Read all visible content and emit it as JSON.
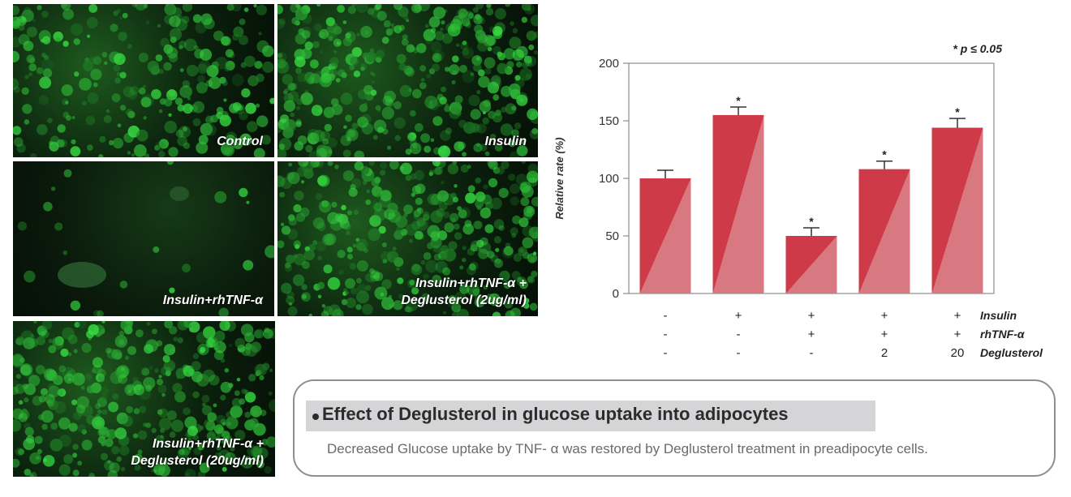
{
  "micrographs": {
    "control": "Control",
    "insulin": "Insulin",
    "insulin_tnf": "Insulin+rhTNF-α",
    "deg2": [
      "Insulin+rhTNF-α +",
      "Deglusterol (2ug/ml)"
    ],
    "deg20": [
      "Insulin+rhTNF-α +",
      "Deglusterol (20ug/ml)"
    ]
  },
  "chart_data": {
    "type": "bar",
    "title": "",
    "xlabel": "",
    "ylabel": "Relative rate (%)",
    "ylim": [
      0,
      200
    ],
    "yticks": [
      0,
      50,
      100,
      150,
      200
    ],
    "values": [
      100,
      155,
      50,
      108,
      144
    ],
    "errors": [
      7,
      7,
      7,
      7,
      8
    ],
    "significance": [
      "",
      "*",
      "*",
      "*",
      "*"
    ],
    "significance_note": "* p ≤ 0.05",
    "grid": false,
    "conditions": [
      {
        "name": "Insulin",
        "values": [
          "-",
          "+",
          "+",
          "+",
          "+"
        ]
      },
      {
        "name": "rhTNF-α",
        "values": [
          "-",
          "-",
          "+",
          "+",
          "+"
        ]
      },
      {
        "name": "Deglusterol",
        "values": [
          "-",
          "-",
          "-",
          "2",
          "20"
        ]
      }
    ]
  },
  "colors": {
    "bar_dark": "#cf3a48",
    "bar_light": "#d87880",
    "axis": "#777777"
  },
  "info": {
    "title": "Effect of Deglusterol in glucose uptake into adipocytes",
    "text": "Decreased Glucose uptake by TNF- α was restored by Deglusterol treatment in preadipocyte cells."
  }
}
